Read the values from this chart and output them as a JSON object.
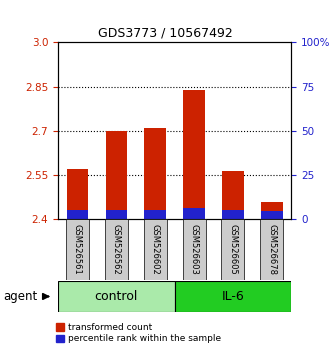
{
  "title": "GDS3773 / 10567492",
  "samples": [
    "GSM526561",
    "GSM526562",
    "GSM526602",
    "GSM526603",
    "GSM526605",
    "GSM526678"
  ],
  "red_top": [
    2.57,
    2.7,
    2.71,
    2.838,
    2.565,
    2.46
  ],
  "blue_top": [
    2.432,
    2.432,
    2.432,
    2.438,
    2.432,
    2.43
  ],
  "bar_base": 2.4,
  "ylim": [
    2.4,
    3.0
  ],
  "yticks_left": [
    2.4,
    2.55,
    2.7,
    2.85,
    3.0
  ],
  "yticks_right_vals": [
    0,
    25,
    50,
    75,
    100
  ],
  "yticks_right_labels": [
    "0",
    "25",
    "50",
    "75",
    "100%"
  ],
  "hlines": [
    2.55,
    2.7,
    2.85
  ],
  "control_color": "#AAEAAA",
  "il6_color": "#22CC22",
  "bar_width": 0.55,
  "red_color": "#CC2200",
  "blue_color": "#2222CC",
  "legend_red": "transformed count",
  "legend_blue": "percentile rank within the sample",
  "left_tick_color": "#CC2200",
  "right_tick_color": "#2222CC",
  "agent_label": "agent",
  "control_label": "control",
  "il6_label": "IL-6",
  "sample_box_color": "#CCCCCC",
  "title_fontsize": 9,
  "tick_fontsize": 7.5,
  "sample_fontsize": 6.0,
  "legend_fontsize": 6.5,
  "agent_fontsize": 8.5,
  "group_label_fontsize": 9
}
